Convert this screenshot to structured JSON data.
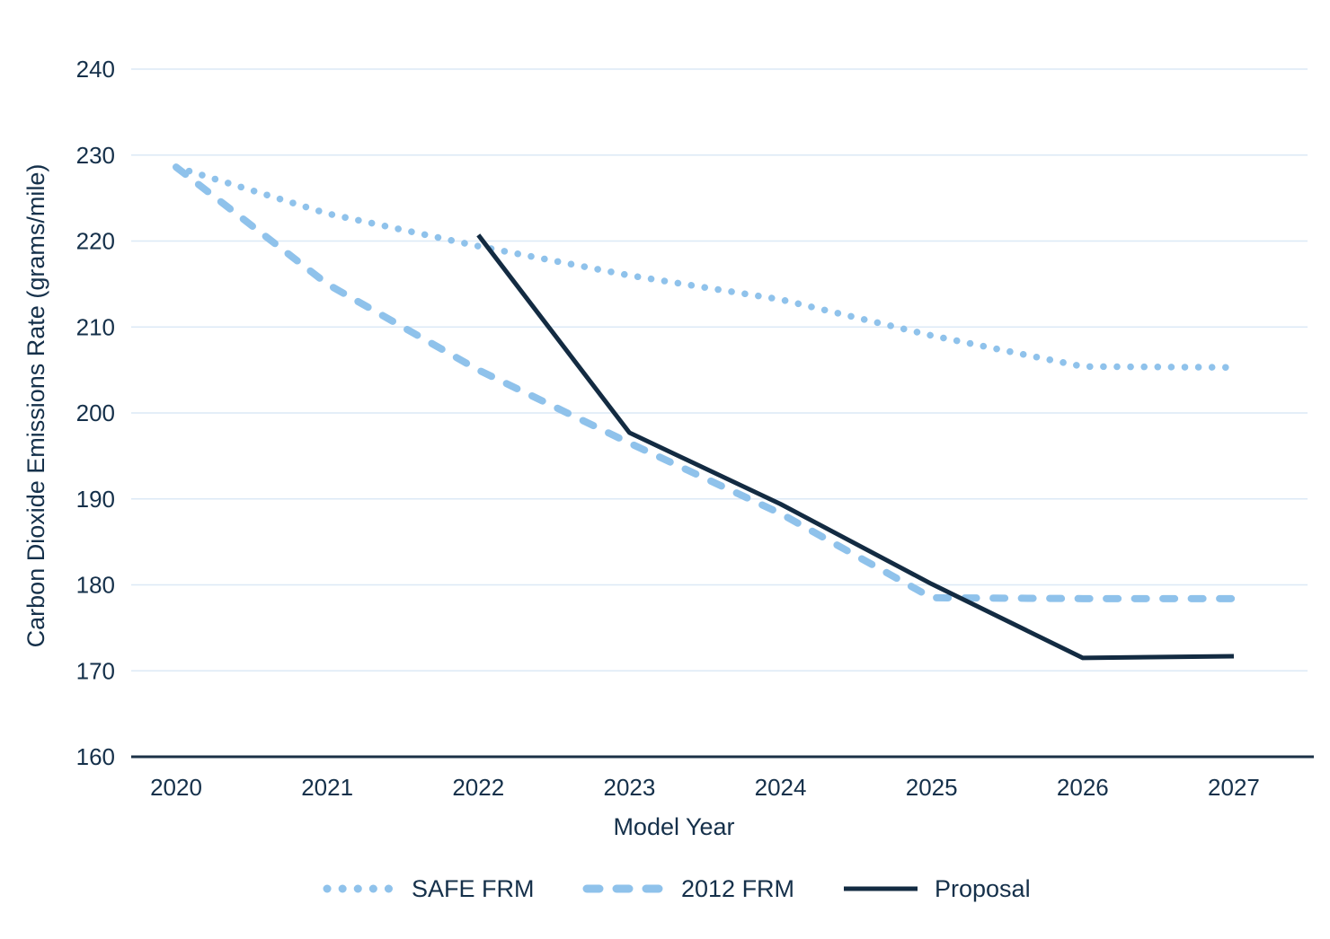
{
  "chart_data": {
    "type": "line",
    "title": "",
    "xlabel": "Model Year",
    "ylabel": "Carbon Dioxide Emissions Rate (grams/mile)",
    "x": [
      2020,
      2021,
      2022,
      2023,
      2024,
      2025,
      2026,
      2027
    ],
    "xtick_labels": [
      "2020",
      "2021",
      "2022",
      "2023",
      "2024",
      "2025",
      "2026",
      "2027"
    ],
    "yticks": [
      160,
      170,
      180,
      190,
      200,
      210,
      220,
      230,
      240
    ],
    "ylim": [
      160,
      245
    ],
    "grid": true,
    "legend_position": "bottom",
    "series": [
      {
        "name": "SAFE FRM",
        "style": "dotted",
        "color": "#8fc2eb",
        "x": [
          2020,
          2021,
          2022,
          2023,
          2024,
          2025,
          2026,
          2027
        ],
        "values": [
          228.6,
          223.2,
          219.4,
          216.0,
          213.2,
          209.0,
          205.4,
          205.3
        ]
      },
      {
        "name": "2012 FRM",
        "style": "dashed",
        "color": "#8fc2eb",
        "x": [
          2020,
          2021,
          2022,
          2023,
          2024,
          2025,
          2026,
          2027
        ],
        "values": [
          228.6,
          215.0,
          205.0,
          196.5,
          188.3,
          178.5,
          178.4,
          178.4
        ]
      },
      {
        "name": "Proposal",
        "style": "solid",
        "color": "#132b42",
        "x": [
          2022,
          2023,
          2024,
          2025,
          2026,
          2027
        ],
        "values": [
          220.7,
          197.7,
          189.4,
          180.1,
          171.5,
          171.7
        ]
      }
    ]
  },
  "colors": {
    "text": "#15304a",
    "axis": "#1b3147",
    "gridline": "#dce9f6",
    "light_blue": "#8fc2eb",
    "dark_navy": "#132b42",
    "background": "#ffffff"
  }
}
